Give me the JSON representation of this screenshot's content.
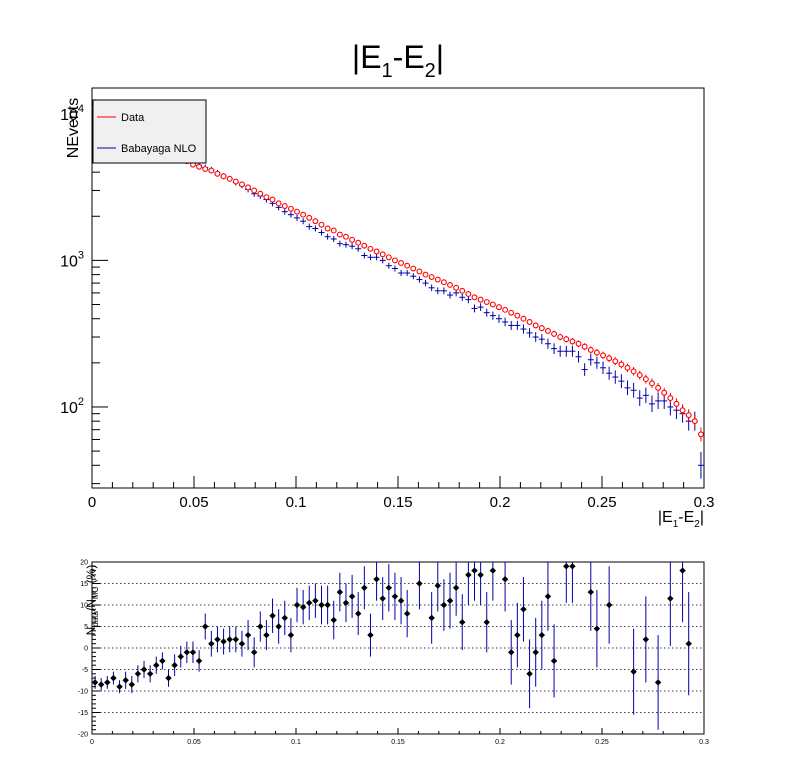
{
  "chart_data": [
    {
      "type": "scatter",
      "title": {
        "base": "|E",
        "sub1": "1",
        "mid": "-E",
        "sub2": "2",
        "end": "|"
      },
      "ylabel": "NEvents",
      "xlabel": {
        "base": "|E",
        "sub1": "1",
        "mid": "-E",
        "sub2": "2",
        "end": "|"
      },
      "xlim": [
        0,
        0.3
      ],
      "ylim": [
        28,
        15000
      ],
      "log_y": true,
      "x_ticks": [
        "0",
        "0.05",
        "0.1",
        "0.15",
        "0.2",
        "0.25",
        "0.3"
      ],
      "y_ticks": [
        {
          "base": "10",
          "exp": "2"
        },
        {
          "base": "10",
          "exp": "3"
        },
        {
          "base": "10",
          "exp": "4"
        }
      ],
      "legend_position": "top-left",
      "grid": false,
      "series": [
        {
          "name": "Data",
          "color": "#ff0000",
          "marker": "open-circle",
          "x": [
            0.0015,
            0.0045,
            0.0075,
            0.0105,
            0.0135,
            0.0165,
            0.0195,
            0.0225,
            0.0255,
            0.0285,
            0.0315,
            0.0345,
            0.0375,
            0.0405,
            0.0435,
            0.0465,
            0.0495,
            0.0525,
            0.0555,
            0.0585,
            0.0615,
            0.0645,
            0.0675,
            0.0705,
            0.0735,
            0.0765,
            0.0795,
            0.0825,
            0.0855,
            0.0885,
            0.0915,
            0.0945,
            0.0975,
            0.1005,
            0.1035,
            0.1065,
            0.1095,
            0.1125,
            0.1155,
            0.1185,
            0.1215,
            0.1245,
            0.1275,
            0.1305,
            0.1335,
            0.1365,
            0.1395,
            0.1425,
            0.1455,
            0.1485,
            0.1515,
            0.1545,
            0.1575,
            0.1605,
            0.1635,
            0.1665,
            0.1695,
            0.1725,
            0.1755,
            0.1785,
            0.1815,
            0.1845,
            0.1875,
            0.1905,
            0.1935,
            0.1965,
            0.1995,
            0.2025,
            0.2055,
            0.2085,
            0.2115,
            0.2145,
            0.2175,
            0.2205,
            0.2235,
            0.2265,
            0.2295,
            0.2325,
            0.2355,
            0.2385,
            0.2415,
            0.2445,
            0.2475,
            0.2505,
            0.2535,
            0.2565,
            0.2595,
            0.2625,
            0.2655,
            0.2685,
            0.2715,
            0.2745,
            0.2775,
            0.2805,
            0.2835,
            0.2865,
            0.2895,
            0.2925,
            0.2955,
            0.2985
          ],
          "y": [
            11000,
            10400,
            9800,
            9300,
            8900,
            8400,
            8000,
            7500,
            7100,
            6700,
            6400,
            6000,
            5650,
            5300,
            5000,
            4750,
            4500,
            4350,
            4200,
            4100,
            3900,
            3750,
            3600,
            3450,
            3300,
            3150,
            3000,
            2850,
            2700,
            2600,
            2450,
            2350,
            2250,
            2150,
            2050,
            1950,
            1850,
            1750,
            1650,
            1600,
            1500,
            1450,
            1380,
            1320,
            1260,
            1200,
            1150,
            1100,
            1050,
            1000,
            960,
            920,
            880,
            840,
            800,
            770,
            740,
            710,
            680,
            650,
            620,
            590,
            560,
            540,
            520,
            500,
            480,
            460,
            440,
            420,
            400,
            380,
            360,
            345,
            330,
            315,
            300,
            290,
            280,
            270,
            258,
            245,
            235,
            225,
            215,
            205,
            195,
            185,
            175,
            165,
            155,
            145,
            135,
            125,
            115,
            105,
            95,
            88,
            80,
            65
          ]
        },
        {
          "name": "Babayaga NLO",
          "color": "#0000aa",
          "marker": "cross",
          "x": [
            0.0015,
            0.0045,
            0.0075,
            0.0105,
            0.0135,
            0.0165,
            0.0195,
            0.0225,
            0.0255,
            0.0285,
            0.0315,
            0.0345,
            0.0375,
            0.0405,
            0.0435,
            0.0465,
            0.0495,
            0.0525,
            0.0555,
            0.0585,
            0.0615,
            0.0645,
            0.0675,
            0.0705,
            0.0735,
            0.0765,
            0.0795,
            0.0825,
            0.0855,
            0.0885,
            0.0915,
            0.0945,
            0.0975,
            0.1005,
            0.1035,
            0.1065,
            0.1095,
            0.1125,
            0.1155,
            0.1185,
            0.1215,
            0.1245,
            0.1275,
            0.1305,
            0.1335,
            0.1365,
            0.1395,
            0.1425,
            0.1455,
            0.1485,
            0.1515,
            0.1545,
            0.1575,
            0.1605,
            0.1635,
            0.1665,
            0.1695,
            0.1725,
            0.1755,
            0.1785,
            0.1815,
            0.1845,
            0.1875,
            0.1905,
            0.1935,
            0.1965,
            0.1995,
            0.2025,
            0.2055,
            0.2085,
            0.2115,
            0.2145,
            0.2175,
            0.2205,
            0.2235,
            0.2265,
            0.2295,
            0.2325,
            0.2355,
            0.2385,
            0.2415,
            0.2445,
            0.2475,
            0.2505,
            0.2535,
            0.2565,
            0.2595,
            0.2625,
            0.2655,
            0.2685,
            0.2715,
            0.2745,
            0.2775,
            0.2805,
            0.2835,
            0.2865,
            0.2895,
            0.2925,
            0.2955,
            0.2985
          ],
          "y": [
            12000,
            11300,
            10600,
            10000,
            9700,
            9100,
            8700,
            8100,
            7600,
            7200,
            6800,
            6400,
            6000,
            5600,
            5300,
            5000,
            4750,
            4450,
            4300,
            4150,
            3950,
            3750,
            3600,
            3400,
            3250,
            3050,
            2850,
            2750,
            2600,
            2450,
            2300,
            2150,
            2050,
            1950,
            1850,
            1700,
            1650,
            1550,
            1450,
            1400,
            1300,
            1280,
            1250,
            1200,
            1080,
            1050,
            1050,
            1000,
            920,
            880,
            820,
            820,
            780,
            740,
            700,
            650,
            620,
            620,
            580,
            600,
            560,
            540,
            470,
            480,
            440,
            420,
            400,
            380,
            360,
            360,
            340,
            320,
            300,
            290,
            270,
            250,
            240,
            240,
            240,
            220,
            180,
            210,
            200,
            185,
            170,
            160,
            150,
            135,
            130,
            115,
            120,
            105,
            110,
            110,
            100,
            95,
            90,
            80,
            80,
            40
          ]
        }
      ]
    },
    {
      "type": "scatter",
      "ylabel": {
        "base": "N",
        "sub1": "data",
        "mid": "/N",
        "sub2": "MC",
        "end": " (%)"
      },
      "xlim": [
        0,
        0.3
      ],
      "ylim": [
        -20,
        20
      ],
      "x_ticks": [
        "0",
        "0.05",
        "0.1",
        "0.15",
        "0.2",
        "0.25",
        "0.3"
      ],
      "y_ticks": [
        "-20",
        "-15",
        "-10",
        "-5",
        "0",
        "5",
        "10",
        "15",
        "20"
      ],
      "grid": "horizontal-dotted",
      "series": [
        {
          "marker": "filled-diamond",
          "color": "#000000",
          "errcolor": "#0000aa",
          "x": [
            0.0015,
            0.0045,
            0.0075,
            0.0105,
            0.0135,
            0.0165,
            0.0195,
            0.0225,
            0.0255,
            0.0285,
            0.0315,
            0.0345,
            0.0375,
            0.0405,
            0.0435,
            0.0465,
            0.0495,
            0.0525,
            0.0555,
            0.0585,
            0.0615,
            0.0645,
            0.0675,
            0.0705,
            0.0735,
            0.0765,
            0.0795,
            0.0825,
            0.0855,
            0.0885,
            0.0915,
            0.0945,
            0.0975,
            0.1005,
            0.1035,
            0.1065,
            0.1095,
            0.1125,
            0.1155,
            0.1185,
            0.1215,
            0.1245,
            0.1275,
            0.1305,
            0.1335,
            0.1365,
            0.1395,
            0.1425,
            0.1455,
            0.1485,
            0.1515,
            0.1545,
            0.1605,
            0.1665,
            0.1695,
            0.1725,
            0.1755,
            0.1785,
            0.1815,
            0.1845,
            0.1875,
            0.1905,
            0.1935,
            0.1965,
            0.2025,
            0.2055,
            0.2085,
            0.2115,
            0.2145,
            0.2175,
            0.2205,
            0.2235,
            0.2265,
            0.2325,
            0.2355,
            0.2445,
            0.2475,
            0.2535,
            0.2655,
            0.2715,
            0.2775,
            0.2835,
            0.2895,
            0.2925
          ],
          "y": [
            -8,
            -8.5,
            -8,
            -7,
            -9,
            -7.5,
            -8.5,
            -6,
            -5,
            -6,
            -4,
            -3,
            -7,
            -4,
            -2,
            -1,
            -1,
            -3,
            5,
            1,
            2,
            1.5,
            2,
            2,
            1,
            3,
            -1,
            5,
            3,
            7.5,
            5,
            7,
            3,
            10,
            9.5,
            10.5,
            11,
            10,
            10,
            6.5,
            13,
            10.5,
            12,
            8,
            14,
            3,
            16,
            11.5,
            14,
            12,
            11,
            8,
            15,
            7,
            14.5,
            10,
            11,
            14,
            6,
            17,
            18,
            17,
            6,
            18,
            16,
            -1,
            3,
            9,
            -6,
            -1,
            3,
            12,
            -3,
            19,
            19,
            13,
            4.5,
            10,
            -5.5,
            2,
            -8,
            11.5,
            18,
            1
          ],
          "err": [
            1.5,
            1.5,
            1.5,
            1.5,
            1.5,
            2,
            2,
            2,
            2,
            2,
            2,
            2,
            2,
            2.5,
            2.5,
            2.5,
            2.5,
            2.5,
            3,
            3,
            3,
            3,
            3,
            3,
            3,
            3.5,
            3.5,
            3.5,
            3.5,
            4,
            4,
            4,
            4,
            4,
            4,
            4,
            4,
            4.5,
            4.5,
            4.5,
            4.5,
            4.5,
            5,
            5,
            5,
            5,
            5,
            5,
            5.5,
            5.5,
            5.5,
            5.5,
            6,
            6,
            6,
            6,
            6.5,
            6.5,
            6.5,
            7,
            7,
            7,
            7,
            7,
            7.5,
            7.5,
            7.5,
            7.5,
            8,
            8,
            8,
            8,
            8.5,
            8.5,
            8.5,
            9,
            9,
            9,
            10,
            10,
            11,
            11,
            12,
            12
          ]
        }
      ]
    }
  ]
}
